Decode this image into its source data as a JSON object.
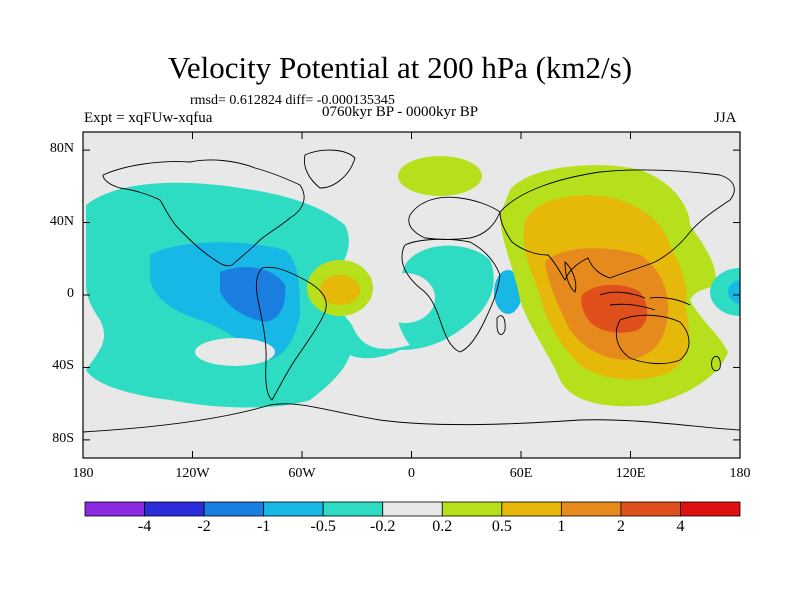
{
  "title": "Velocity Potential at 200 hPa (km2/s)",
  "stats": "rmsd= 0.612824 diff= -0.000135345",
  "experiment": "Expt = xqFUw-xqfua",
  "period": "0760kyr BP - 0000kyr BP",
  "season": "JJA",
  "map": {
    "lon_range": [
      -180,
      180
    ],
    "lat_range": [
      -90,
      90
    ],
    "y_ticks": [
      {
        "lat": 80,
        "label": "80N"
      },
      {
        "lat": 40,
        "label": "40N"
      },
      {
        "lat": 0,
        "label": "0"
      },
      {
        "lat": -40,
        "label": "40S"
      },
      {
        "lat": -80,
        "label": "80S"
      }
    ],
    "x_ticks": [
      {
        "lon": -180,
        "label": "180"
      },
      {
        "lon": -120,
        "label": "120W"
      },
      {
        "lon": -60,
        "label": "60W"
      },
      {
        "lon": 0,
        "label": "0"
      },
      {
        "lon": 60,
        "label": "60E"
      },
      {
        "lon": 120,
        "label": "120E"
      },
      {
        "lon": 180,
        "label": "180"
      }
    ]
  },
  "colorbar": {
    "colors": [
      "#8a2be2",
      "#2c2cdc",
      "#1a7fe0",
      "#17b7e6",
      "#2edcc4",
      "#e8e8e8",
      "#b6e01c",
      "#e6b80a",
      "#e68a1e",
      "#e0501c",
      "#e01010"
    ],
    "labels": [
      "-4",
      "-2",
      "-1",
      "-0.5",
      "-0.2",
      "0.2",
      "0.5",
      "1",
      "2",
      "4"
    ]
  },
  "colors": {
    "neutral": "#e8e8e8",
    "neg_weak": "#2edcc4",
    "neg_mod": "#17b7e6",
    "neg_strong": "#1a7fe0",
    "pos_weak": "#b6e01c",
    "pos_mod": "#e6b80a",
    "pos_strong": "#e68a1e",
    "pos_max": "#e0501c"
  }
}
